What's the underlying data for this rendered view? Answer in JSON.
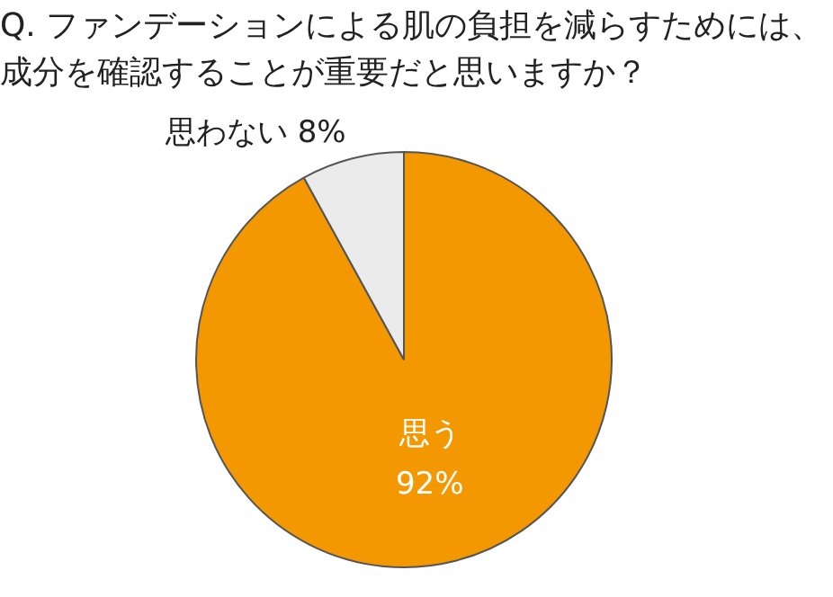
{
  "chart_data": {
    "type": "pie",
    "title": "Q. ファンデーションによる肌の負担を減らすためには、成分を確認することが重要だと思いますか？",
    "categories": [
      "思う",
      "思わない"
    ],
    "values": [
      92,
      8
    ],
    "colors": [
      "#f39800",
      "#ebebeb"
    ],
    "value_labels": [
      "92%",
      "8%"
    ],
    "legend": false
  }
}
